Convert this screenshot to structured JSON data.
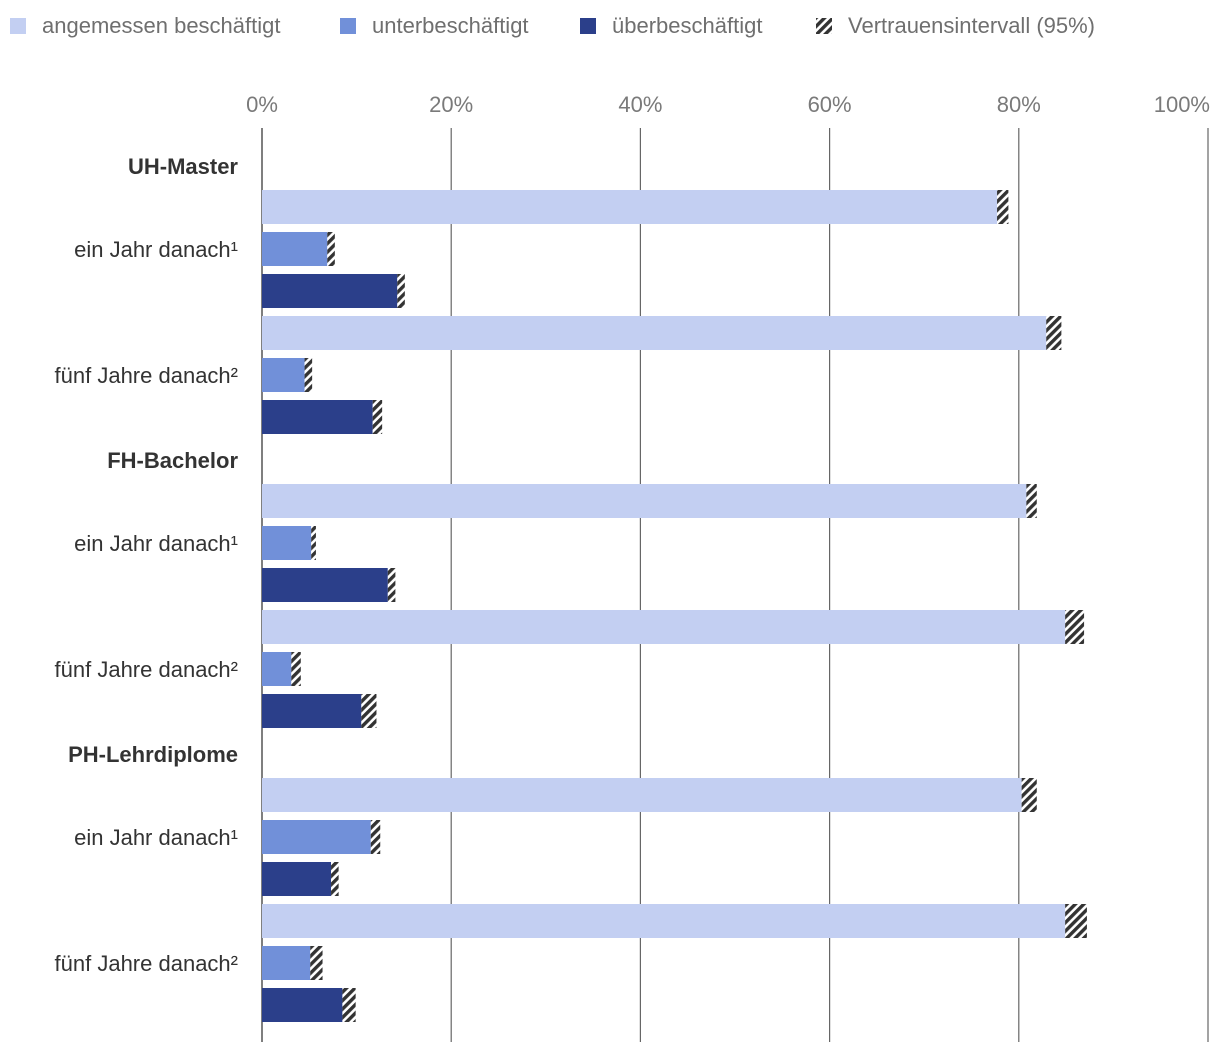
{
  "chart_data": {
    "type": "bar",
    "orientation": "horizontal",
    "xlim": [
      0,
      100
    ],
    "x_ticks": [
      "0%",
      "20%",
      "40%",
      "60%",
      "80%",
      "100%"
    ],
    "grid": true,
    "legend_position": "top-left",
    "legend": [
      {
        "key": "angemessen",
        "label": "angemessen beschäftigt",
        "color": "#c3cff2"
      },
      {
        "key": "unter",
        "label": "unterbeschäftigt",
        "color": "#7190d9"
      },
      {
        "key": "ueber",
        "label": "überbeschäftigt",
        "color": "#2b3f8a"
      },
      {
        "key": "ci",
        "label": "Vertrauensintervall (95%)",
        "color": "#333333",
        "pattern": "hatch"
      }
    ],
    "groups": [
      {
        "name": "UH-Master",
        "rows": [
          {
            "label": "ein Jahr danach¹",
            "values": [
              {
                "series": "angemessen",
                "value": 78.5,
                "ci_low": 77.7,
                "ci_high": 78.9
              },
              {
                "series": "unter",
                "value": 7.3,
                "ci_low": 6.9,
                "ci_high": 7.7
              },
              {
                "series": "ueber",
                "value": 14.7,
                "ci_low": 14.3,
                "ci_high": 15.1
              }
            ]
          },
          {
            "label": "fünf Jahre danach²",
            "values": [
              {
                "series": "angemessen",
                "value": 83.7,
                "ci_low": 82.9,
                "ci_high": 84.5
              },
              {
                "series": "unter",
                "value": 4.9,
                "ci_low": 4.5,
                "ci_high": 5.3
              },
              {
                "series": "ueber",
                "value": 12.3,
                "ci_low": 11.7,
                "ci_high": 12.7
              }
            ]
          }
        ]
      },
      {
        "name": "FH-Bachelor",
        "rows": [
          {
            "label": "ein Jahr danach¹",
            "values": [
              {
                "series": "angemessen",
                "value": 81.3,
                "ci_low": 80.8,
                "ci_high": 81.9
              },
              {
                "series": "unter",
                "value": 5.6,
                "ci_low": 5.2,
                "ci_high": 5.7
              },
              {
                "series": "ueber",
                "value": 13.8,
                "ci_low": 13.3,
                "ci_high": 14.1
              }
            ]
          },
          {
            "label": "fünf Jahre danach²",
            "values": [
              {
                "series": "angemessen",
                "value": 85.9,
                "ci_low": 84.9,
                "ci_high": 86.9
              },
              {
                "series": "unter",
                "value": 3.6,
                "ci_low": 3.1,
                "ci_high": 4.1
              },
              {
                "series": "ueber",
                "value": 11.5,
                "ci_low": 10.5,
                "ci_high": 12.1
              }
            ]
          }
        ]
      },
      {
        "name": "PH-Lehrdiplome",
        "rows": [
          {
            "label": "ein Jahr danach¹",
            "values": [
              {
                "series": "angemessen",
                "value": 81.1,
                "ci_low": 80.3,
                "ci_high": 81.9
              },
              {
                "series": "unter",
                "value": 12.1,
                "ci_low": 11.5,
                "ci_high": 12.5
              },
              {
                "series": "ueber",
                "value": 7.9,
                "ci_low": 7.3,
                "ci_high": 8.1
              }
            ]
          },
          {
            "label": "fünf Jahre danach²",
            "values": [
              {
                "series": "angemessen",
                "value": 86.2,
                "ci_low": 84.9,
                "ci_high": 87.2
              },
              {
                "series": "unter",
                "value": 5.9,
                "ci_low": 5.1,
                "ci_high": 6.4
              },
              {
                "series": "ueber",
                "value": 9.5,
                "ci_low": 8.5,
                "ci_high": 9.9
              }
            ]
          }
        ]
      }
    ]
  }
}
